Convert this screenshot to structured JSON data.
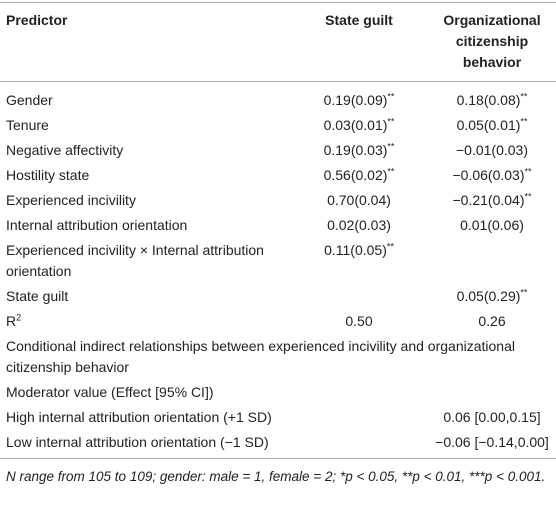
{
  "table": {
    "header": [
      "Predictor",
      "State guilt",
      "Organizational citizenship behavior"
    ],
    "rows": [
      [
        "Gender",
        {
          "text": "0.19(0.09)",
          "sup": "**"
        },
        {
          "text": "0.18(0.08)",
          "sup": "**"
        }
      ],
      [
        "Tenure",
        {
          "text": "0.03(0.01)",
          "sup": "**"
        },
        {
          "text": "0.05(0.01)",
          "sup": "**"
        }
      ],
      [
        "Negative affectivity",
        {
          "text": "0.19(0.03)",
          "sup": "**"
        },
        {
          "text": "−0.01(0.03)"
        }
      ],
      [
        "Hostility state",
        {
          "text": "0.56(0.02)",
          "sup": "**"
        },
        {
          "text": "−0.06(0.03)",
          "sup": "**"
        }
      ],
      [
        "Experienced incivility",
        {
          "text": "0.70(0.04)"
        },
        {
          "text": "−0.21(0.04)",
          "sup": "**"
        }
      ],
      [
        "Internal attribution orientation",
        {
          "text": "0.02(0.03)"
        },
        {
          "text": "0.01(0.06)"
        }
      ],
      [
        "Experienced incivility × Internal attribution orientation",
        {
          "text": "0.11(0.05)",
          "sup": "**"
        },
        null
      ],
      [
        "State guilt",
        null,
        {
          "text": "0.05(0.29)",
          "sup": "**"
        }
      ],
      [
        {
          "text": "R",
          "sup": "2"
        },
        {
          "text": "0.50"
        },
        {
          "text": "0.26"
        }
      ],
      [
        "Conditional indirect relationships between experienced incivility and organizational citizenship behavior"
      ],
      [
        "Moderator value (Effect [95% CI])"
      ],
      [
        "High internal attribution orientation (+1 SD)",
        null,
        {
          "text": "0.06 [0.00,0.15]"
        }
      ],
      [
        "Low internal attribution orientation (−1 SD)",
        null,
        {
          "text": "−0.06 [−0.14,0.00]"
        }
      ]
    ],
    "footnote": "N range from 105 to 109; gender: male = 1, female = 2; *p < 0.05, **p < 0.01, ***p < 0.001."
  }
}
